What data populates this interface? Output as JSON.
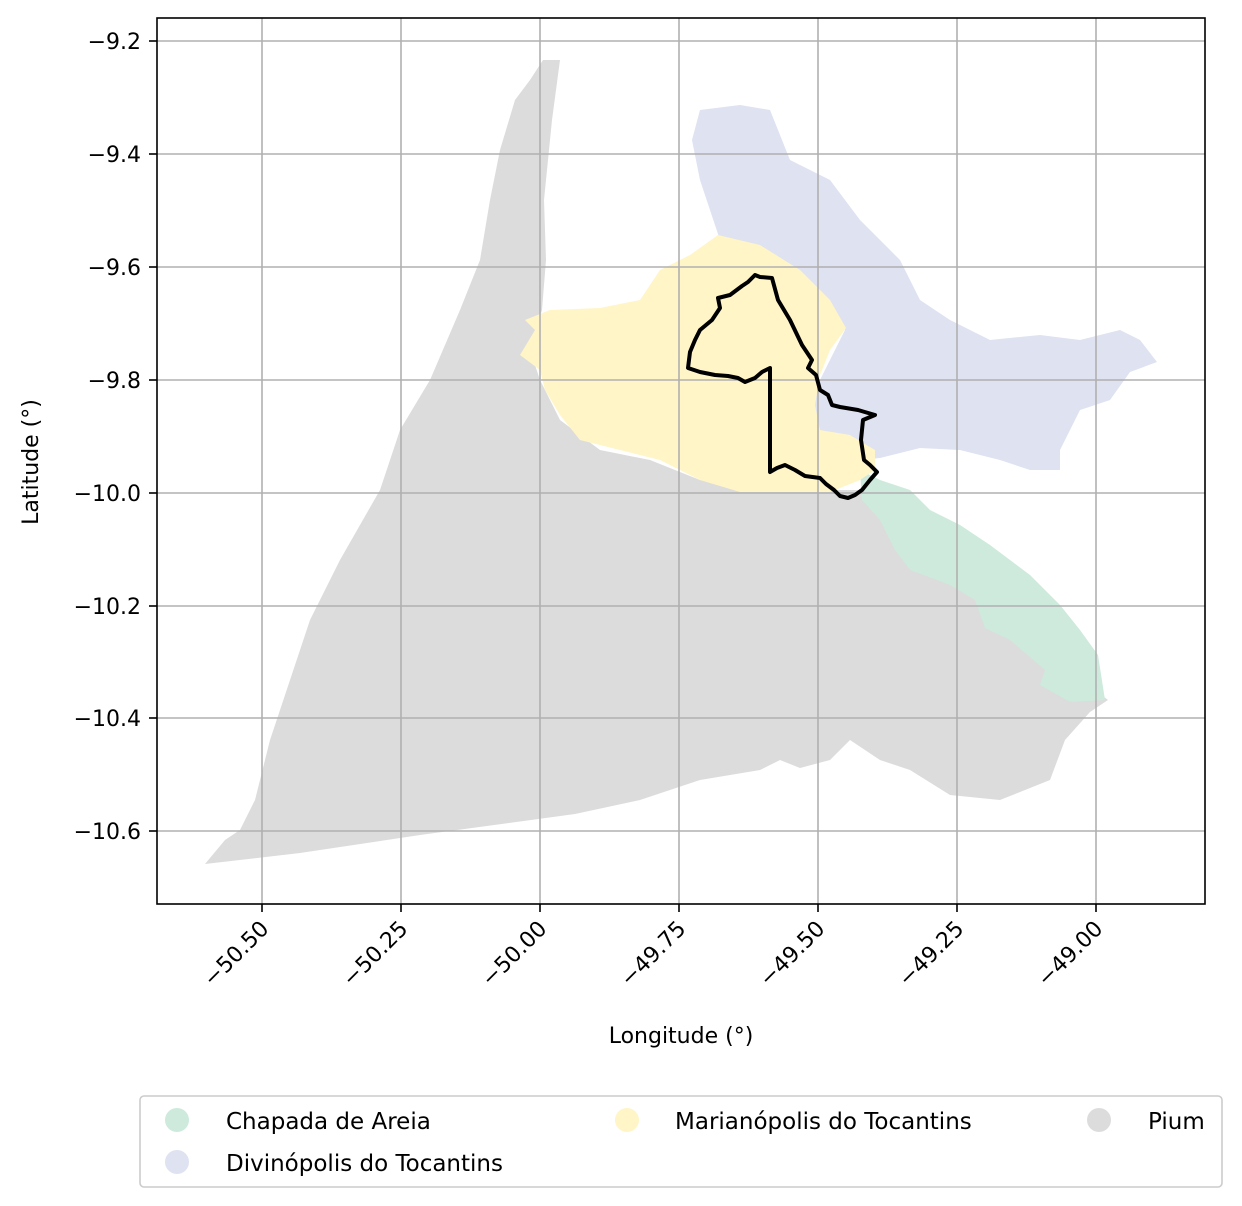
{
  "map": {
    "xlabel": "Longitude (°)",
    "ylabel": "Latitude (°)",
    "xlim": [
      -50.69,
      -48.8
    ],
    "ylim": [
      -10.74,
      -9.16
    ],
    "grid": true,
    "x_ticks": [
      -50.5,
      -50.25,
      -50.0,
      -49.75,
      -49.5,
      -49.25,
      -49.0
    ],
    "x_tick_labels": [
      "−50.50",
      "−50.25",
      "−50.00",
      "−49.75",
      "−49.50",
      "−49.25",
      "−49.00"
    ],
    "y_ticks": [
      -9.2,
      -9.4,
      -9.6,
      -9.8,
      -10.0,
      -10.2,
      -10.4,
      -10.6
    ],
    "y_tick_labels": [
      "−9.2",
      "−9.4",
      "−9.6",
      "−9.8",
      "−10.0",
      "−10.2",
      "−10.4",
      "−10.6"
    ]
  },
  "regions": [
    {
      "name": "Chapada de Areia",
      "color": "#cdeadc"
    },
    {
      "name": "Divinópolis do Tocantins",
      "color": "#dee2f1"
    },
    {
      "name": "Marianópolis do Tocantins",
      "color": "#fff5c7"
    },
    {
      "name": "Pium",
      "color": "#dcdcdc"
    }
  ],
  "legend": {
    "placement": "bottom-center",
    "items": [
      "Chapada de Areia",
      "Divinópolis do Tocantins",
      "Marianópolis do Tocantins",
      "Pium"
    ]
  },
  "highlight": {
    "outline_color": "#000000"
  }
}
